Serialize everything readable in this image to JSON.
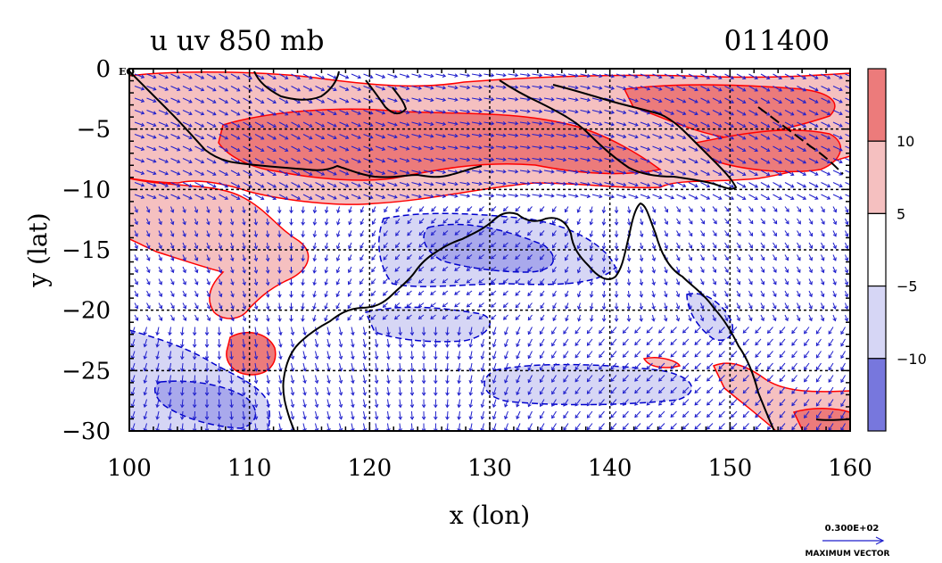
{
  "chart_data": {
    "type": "heatmap",
    "title_left": "u uv 850 mb",
    "title_right": "011400",
    "xlabel": "x (lon)",
    "ylabel": "y (lat)",
    "xlim": [
      100,
      160
    ],
    "ylim": [
      -30,
      0
    ],
    "x_ticks": [
      100,
      110,
      120,
      130,
      140,
      150,
      160
    ],
    "y_ticks": [
      0,
      -5,
      -10,
      -15,
      -20,
      -25,
      -30
    ],
    "x_tick_labels": [
      "100",
      "110",
      "120",
      "130",
      "140",
      "150",
      "160"
    ],
    "y_tick_labels": [
      "0",
      "−5",
      "−10",
      "−15",
      "−20",
      "−25",
      "−30"
    ],
    "eq_label": "EQ",
    "grid": true,
    "colorbar": {
      "labels": [
        "10",
        "5",
        "−5",
        "−10"
      ],
      "levels": [
        -10,
        -5,
        5,
        10
      ],
      "colors": [
        "#7777dd",
        "#d6d6f5",
        "#ffffff",
        "#f5c0c0",
        "#ec7b7b"
      ]
    },
    "vector_key": {
      "value_label": "0.300E+02",
      "caption": "MAXIMUM VECTOR"
    },
    "colors": {
      "strong_pos": "#ec7b7b",
      "weak_pos": "#f5c0c0",
      "weak_neg": "#d6d6f5",
      "strong_neg": "#7777dd",
      "pos_contour": "#ff0000",
      "neg_contour": "#0000cc",
      "vector": "#1f1fcc",
      "coast": "#000000"
    }
  }
}
